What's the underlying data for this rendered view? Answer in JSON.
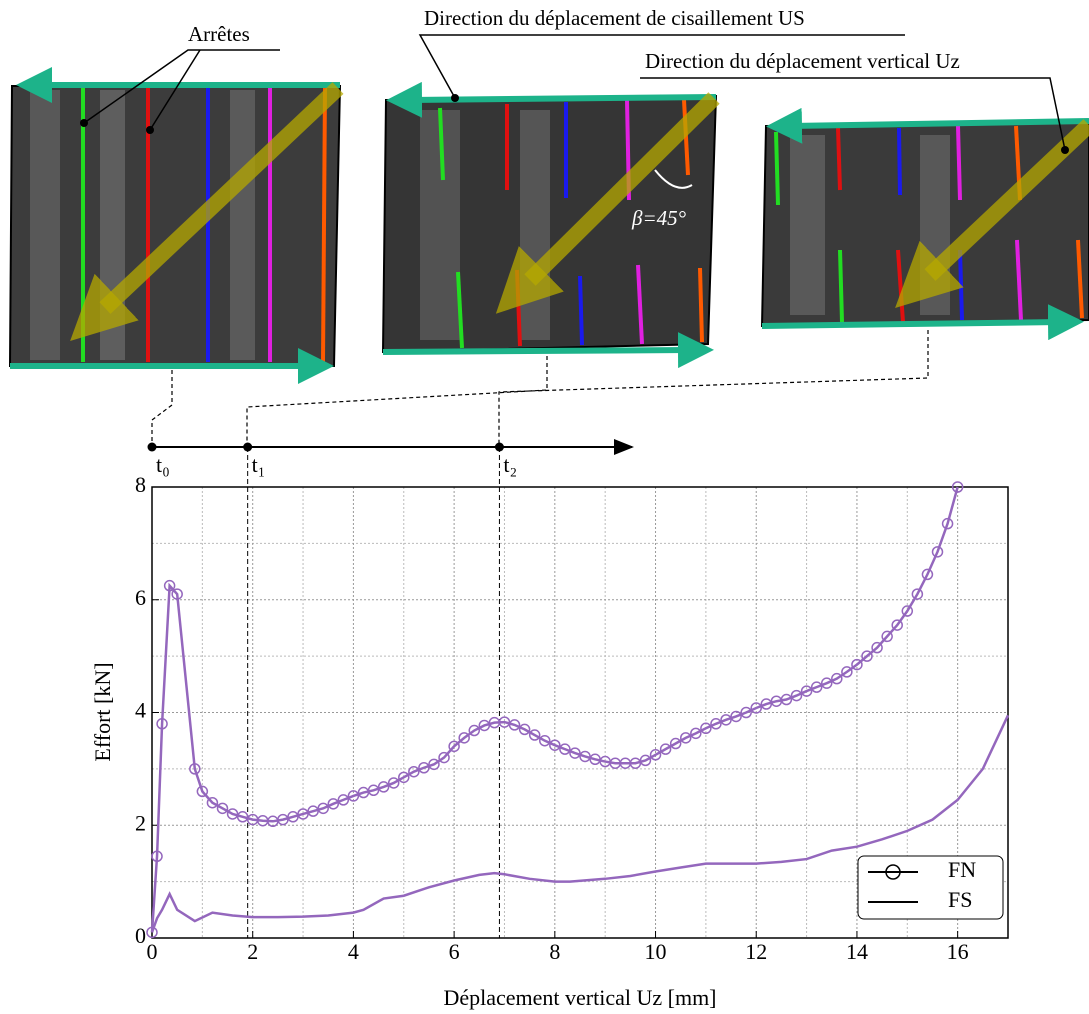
{
  "chart_data": {
    "type": "line",
    "x_label": "Déplacement vertical Uz [mm]",
    "y_label": "Effort [kN]",
    "xlim": [
      0,
      17
    ],
    "ylim": [
      0,
      8
    ],
    "xticks": [
      0,
      2,
      4,
      6,
      8,
      10,
      12,
      14,
      16
    ],
    "yticks": [
      0,
      2,
      4,
      6,
      8
    ],
    "x_minor_ticks": [
      1,
      3,
      5,
      7,
      9,
      11,
      13,
      15,
      17
    ],
    "y_minor_ticks": [
      1,
      3,
      5,
      7
    ],
    "grid": true,
    "legend": "lower right",
    "series": [
      {
        "name": "FN",
        "color": "#9467bd",
        "marker": "circle",
        "x": [
          0,
          0.1,
          0.2,
          0.35,
          0.5,
          0.85,
          1.0,
          1.2,
          1.4,
          1.6,
          1.8,
          2.0,
          2.2,
          2.4,
          2.6,
          2.8,
          3.0,
          3.2,
          3.4,
          3.6,
          3.8,
          4.0,
          4.2,
          4.4,
          4.6,
          4.8,
          5.0,
          5.2,
          5.4,
          5.6,
          5.8,
          6.0,
          6.2,
          6.4,
          6.6,
          6.8,
          7.0,
          7.2,
          7.4,
          7.6,
          7.8,
          8.0,
          8.2,
          8.4,
          8.6,
          8.8,
          9.0,
          9.2,
          9.4,
          9.6,
          9.8,
          10.0,
          10.2,
          10.4,
          10.6,
          10.8,
          11.0,
          11.2,
          11.4,
          11.6,
          11.8,
          12.0,
          12.2,
          12.4,
          12.6,
          12.8,
          13.0,
          13.2,
          13.4,
          13.6,
          13.8,
          14.0,
          14.2,
          14.4,
          14.6,
          14.8,
          15.0,
          15.2,
          15.4,
          15.6,
          15.8,
          16.0
        ],
        "values": [
          0.1,
          1.45,
          3.8,
          6.25,
          6.1,
          3.0,
          2.6,
          2.4,
          2.3,
          2.2,
          2.15,
          2.1,
          2.08,
          2.07,
          2.1,
          2.15,
          2.2,
          2.25,
          2.3,
          2.38,
          2.45,
          2.52,
          2.58,
          2.62,
          2.68,
          2.75,
          2.85,
          2.95,
          3.02,
          3.08,
          3.2,
          3.4,
          3.55,
          3.68,
          3.77,
          3.82,
          3.83,
          3.78,
          3.7,
          3.6,
          3.5,
          3.42,
          3.35,
          3.28,
          3.22,
          3.17,
          3.13,
          3.1,
          3.1,
          3.1,
          3.15,
          3.25,
          3.35,
          3.45,
          3.55,
          3.63,
          3.72,
          3.8,
          3.87,
          3.93,
          4.0,
          4.08,
          4.15,
          4.2,
          4.23,
          4.3,
          4.38,
          4.45,
          4.52,
          4.6,
          4.72,
          4.85,
          5.0,
          5.15,
          5.35,
          5.55,
          5.8,
          6.1,
          6.45,
          6.85,
          7.35,
          8.0
        ]
      },
      {
        "name": "FS",
        "color": "#9467bd",
        "marker": "none",
        "x": [
          0,
          0.1,
          0.2,
          0.35,
          0.5,
          0.85,
          1.2,
          1.6,
          2.0,
          2.5,
          3.0,
          3.5,
          4.0,
          4.2,
          4.6,
          5.0,
          5.5,
          6.0,
          6.5,
          6.8,
          7.0,
          7.5,
          8.0,
          8.3,
          9.0,
          9.5,
          10.0,
          10.5,
          11.0,
          11.5,
          12.0,
          12.5,
          13.0,
          13.5,
          14.0,
          14.5,
          15.0,
          15.5,
          16.0,
          16.5,
          17.0
        ],
        "values": [
          0.1,
          0.35,
          0.5,
          0.78,
          0.5,
          0.3,
          0.45,
          0.4,
          0.37,
          0.37,
          0.38,
          0.4,
          0.45,
          0.5,
          0.7,
          0.75,
          0.9,
          1.02,
          1.12,
          1.15,
          1.13,
          1.05,
          1.0,
          1.0,
          1.05,
          1.1,
          1.18,
          1.25,
          1.32,
          1.32,
          1.32,
          1.35,
          1.4,
          1.55,
          1.62,
          1.75,
          1.9,
          2.1,
          2.45,
          3.0,
          3.95
        ]
      }
    ],
    "time_markers": [
      {
        "label": "t₀",
        "x": 0
      },
      {
        "label": "t₁",
        "x": 1.9
      },
      {
        "label": "t₂",
        "x": 6.9
      }
    ],
    "annotations": [
      "Arrêtes",
      "Direction du déplacement de cisaillement US",
      "Direction du déplacement vertical Uz",
      "β=45°"
    ]
  }
}
